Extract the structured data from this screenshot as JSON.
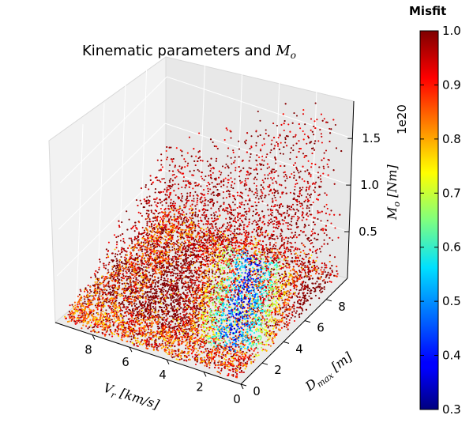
{
  "chart_data": {
    "type": "scatter",
    "title": "Kinematic parameters and M_o",
    "title_text": "Kinematic parameters and ",
    "title_math": "M",
    "title_math_sub": "o",
    "x_axis": {
      "label": "V_r [km/s]",
      "label_main": "V",
      "label_sub": "r",
      "label_rest": " [km/s]",
      "ticks": [
        0,
        2,
        4,
        6,
        8
      ],
      "tick_labels": [
        "0",
        "2",
        "4",
        "6",
        "8"
      ],
      "range": [
        0,
        10
      ]
    },
    "y_axis": {
      "label": "D_max [m]",
      "label_main": "D",
      "label_sub": "max",
      "label_rest": " [m]",
      "ticks": [
        0,
        2,
        4,
        6,
        8
      ],
      "tick_labels": [
        "0",
        "2",
        "4",
        "6",
        "8"
      ],
      "range": [
        0,
        10
      ]
    },
    "z_axis": {
      "label": "M_o [Nm]",
      "label_main": "M",
      "label_sub": "o",
      "label_rest": " [Nm]",
      "offset_text": "1e20",
      "ticks": [
        0.5,
        1.0,
        1.5
      ],
      "tick_labels": [
        "0.5",
        "1.0",
        "1.5"
      ],
      "range": [
        0,
        1.9
      ]
    },
    "colorbar": {
      "title": "Misfit",
      "range": [
        0.3,
        1.0
      ],
      "ticks": [
        0.3,
        0.4,
        0.5,
        0.6,
        0.7,
        0.8,
        0.9,
        1.0
      ],
      "tick_labels": [
        "0.3",
        "0.4",
        "0.5",
        "0.6",
        "0.7",
        "0.8",
        "0.9",
        "1.0"
      ],
      "colormap": "jet"
    },
    "point_cloud": {
      "n_points_approx": 30000,
      "relation": "M_o increases with D_max and decreases with V_r; lowest misfit (~0.3–0.5) along a band near V_r 1–4 km/s, D_max 3–8 m, small M_o",
      "low_misfit_band": {
        "vr_range": [
          1,
          4.5
        ],
        "dmax_range": [
          2.5,
          8.5
        ],
        "mo_range": [
          0,
          0.3
        ],
        "misfit_min": 0.3
      },
      "high_misfit_color": "#8b0000"
    },
    "grid": true,
    "pane_color": "#f2f2f2"
  }
}
